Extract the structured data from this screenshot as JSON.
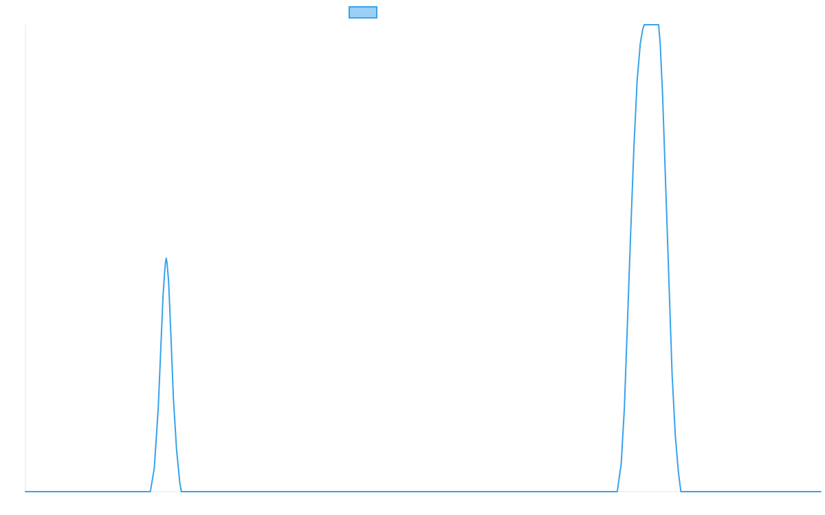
{
  "chart_data": {
    "type": "line",
    "title": "",
    "xlabel": "",
    "ylabel": "",
    "legend": {
      "placement": "top-center",
      "entries": [
        {
          "name": "",
          "color": "#36a2eb",
          "fill": "#9ad0f5"
        }
      ]
    },
    "grid": false,
    "xlim": [
      0,
      100
    ],
    "ylim": [
      0,
      1
    ],
    "series": [
      {
        "name": "",
        "color": "#36a2eb",
        "points": [
          [
            0,
            0
          ],
          [
            15.7,
            0
          ],
          [
            16.2,
            0.05
          ],
          [
            16.7,
            0.18
          ],
          [
            17.0,
            0.3
          ],
          [
            17.3,
            0.42
          ],
          [
            17.5,
            0.47
          ],
          [
            17.6,
            0.49
          ],
          [
            17.7,
            0.5
          ],
          [
            17.8,
            0.49
          ],
          [
            18.0,
            0.45
          ],
          [
            18.3,
            0.33
          ],
          [
            18.6,
            0.2
          ],
          [
            19.0,
            0.09
          ],
          [
            19.4,
            0.02
          ],
          [
            19.6,
            0
          ],
          [
            74.4,
            0
          ],
          [
            74.9,
            0.06
          ],
          [
            75.3,
            0.18
          ],
          [
            75.7,
            0.37
          ],
          [
            76.1,
            0.56
          ],
          [
            76.5,
            0.74
          ],
          [
            76.9,
            0.88
          ],
          [
            77.3,
            0.96
          ],
          [
            77.6,
            0.99
          ],
          [
            77.8,
            1.0
          ],
          [
            79.6,
            1.0
          ],
          [
            79.8,
            0.96
          ],
          [
            80.1,
            0.85
          ],
          [
            80.5,
            0.65
          ],
          [
            80.9,
            0.45
          ],
          [
            81.3,
            0.25
          ],
          [
            81.7,
            0.12
          ],
          [
            82.1,
            0.04
          ],
          [
            82.4,
            0
          ],
          [
            100,
            0
          ]
        ]
      }
    ]
  }
}
